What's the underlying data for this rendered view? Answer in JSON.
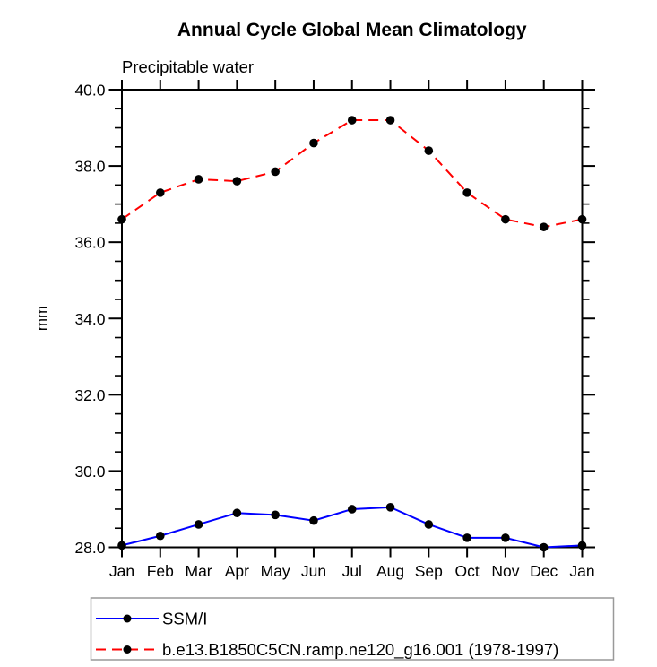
{
  "chart_data": {
    "type": "line",
    "title": "Annual Cycle Global Mean Climatology",
    "subtitle": "Precipitable water",
    "ylabel": "mm",
    "xlabel": "",
    "ylim": [
      28.0,
      40.0
    ],
    "y_major_step": 2.0,
    "y_minor_step": 0.5,
    "y_tick_labels": [
      "28.0",
      "30.0",
      "32.0",
      "34.0",
      "36.0",
      "38.0",
      "40.0"
    ],
    "categories": [
      "Jan",
      "Feb",
      "Mar",
      "Apr",
      "May",
      "Jun",
      "Jul",
      "Aug",
      "Sep",
      "Oct",
      "Nov",
      "Dec",
      "Jan"
    ],
    "grid": false,
    "legend_position": "bottom",
    "axis_color": "#000000",
    "marker_color": "#000000",
    "legend_border_color": "#999999",
    "series": [
      {
        "name": "SSM/I",
        "color": "#0000ff",
        "line_style": "solid",
        "marker": "black-dot",
        "values": [
          28.05,
          28.3,
          28.6,
          28.9,
          28.85,
          28.7,
          29.0,
          29.05,
          28.6,
          28.25,
          28.25,
          28.0,
          28.05
        ]
      },
      {
        "name": "b.e13.B1850C5CN.ramp.ne120_g16.001 (1978-1997)",
        "color": "#ff0000",
        "line_style": "dashed",
        "marker": "black-dot",
        "values": [
          36.6,
          37.3,
          37.65,
          37.6,
          37.85,
          38.6,
          39.2,
          39.2,
          38.4,
          37.3,
          36.6,
          36.4,
          36.6
        ]
      }
    ]
  }
}
